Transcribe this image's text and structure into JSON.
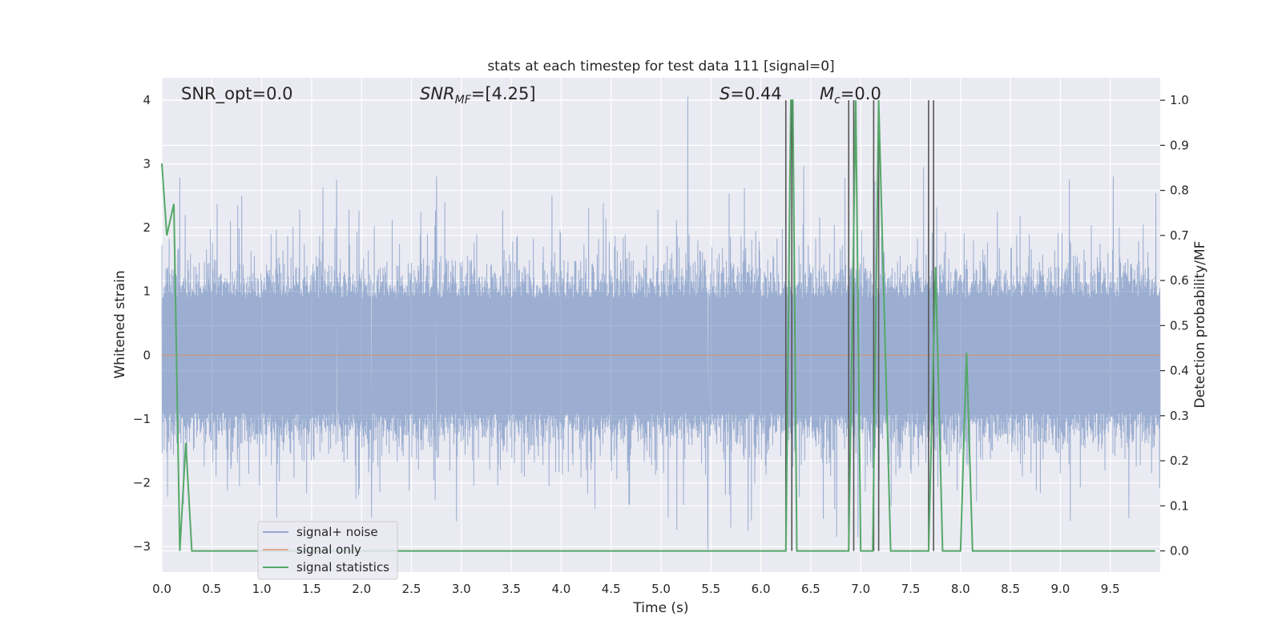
{
  "chart_data": {
    "type": "line",
    "title": "stats at each timestep for test data 111 [signal=0]",
    "xlabel": "Time (s)",
    "ylabel": "Whitened strain",
    "ylabel_right": "Detection probability/MF",
    "xlim": [
      0,
      10
    ],
    "ylim": [
      -3.4,
      4.35
    ],
    "ylim_right": [
      -0.047,
      1.05
    ],
    "x_ticks": [
      "0.0",
      "0.5",
      "1.0",
      "1.5",
      "2.0",
      "2.5",
      "3.0",
      "3.5",
      "4.0",
      "4.5",
      "5.0",
      "5.5",
      "6.0",
      "6.5",
      "7.0",
      "7.5",
      "8.0",
      "8.5",
      "9.0",
      "9.5"
    ],
    "y_ticks": [
      "4",
      "3",
      "2",
      "1",
      "0",
      "−1",
      "−2",
      "−3"
    ],
    "y_tick_values": [
      4,
      3,
      2,
      1,
      0,
      -1,
      -2,
      -3
    ],
    "y_right_ticks": [
      "1.0",
      "0.9",
      "0.8",
      "0.7",
      "0.6",
      "0.5",
      "0.4",
      "0.3",
      "0.2",
      "0.1",
      "0.0"
    ],
    "y_right_tick_values": [
      1.0,
      0.9,
      0.8,
      0.7,
      0.6,
      0.5,
      0.4,
      0.3,
      0.2,
      0.1,
      0.0
    ],
    "grid": true,
    "legend_position": "lower-left",
    "annotations": {
      "snr_opt": "SNR_opt=0.0",
      "snr_mf_italic": "SNR",
      "snr_mf_sub": "MF",
      "snr_mf_rest": "=[4.25]",
      "s_italic": "S",
      "s_rest": "=0.44",
      "mc_italic": "M",
      "mc_sub": "c",
      "mc_rest": "=0.0"
    },
    "series": [
      {
        "name": "signal+ noise",
        "color": "#4c72b0",
        "style": "whitened noise, roughly symmetric about 0 with typical envelope ±1.3 and spikes",
        "peaks": [
          {
            "x": 0.8,
            "y": 2.5
          },
          {
            "x": 1.75,
            "y": 2.75
          },
          {
            "x": 2.75,
            "y": 2.8
          },
          {
            "x": 5.27,
            "y": 4.05
          },
          {
            "x": 7.63,
            "y": 2.95
          },
          {
            "x": 9.53,
            "y": 2.8
          }
        ],
        "troughs": [
          {
            "x": 1.15,
            "y": -2.55
          },
          {
            "x": 2.1,
            "y": -2.55
          },
          {
            "x": 5.47,
            "y": -3.05
          },
          {
            "x": 5.7,
            "y": -2.7
          },
          {
            "x": 9.1,
            "y": -2.6
          }
        ]
      },
      {
        "name": "signal only",
        "color": "#dd8452",
        "x": [
          0,
          10
        ],
        "y": [
          0,
          0
        ]
      },
      {
        "name": "signal statistics",
        "color": "#55a868",
        "axis": "right",
        "x": [
          0.0,
          0.05,
          0.12,
          0.18,
          0.24,
          0.3,
          6.25,
          6.3,
          6.32,
          6.36,
          6.88,
          6.95,
          7.0,
          7.12,
          7.18,
          7.3,
          7.68,
          7.75,
          7.82,
          8.0,
          8.06,
          8.12,
          9.95
        ],
        "y": [
          0.86,
          0.7,
          0.77,
          0.0,
          0.24,
          0.0,
          0.0,
          1.0,
          1.0,
          0.0,
          0.0,
          1.0,
          0.0,
          0.0,
          1.0,
          0.0,
          0.0,
          0.63,
          0.0,
          0.0,
          0.44,
          0.0,
          0.0
        ]
      }
    ],
    "vlines": [
      6.25,
      6.31,
      6.88,
      6.93,
      7.13,
      7.18,
      7.68,
      7.73
    ],
    "vline_color": "#555555"
  },
  "legend": [
    {
      "label": "signal+ noise",
      "color": "#4c72b0"
    },
    {
      "label": "signal only",
      "color": "#dd8452"
    },
    {
      "label": "signal statistics",
      "color": "#55a868"
    }
  ]
}
